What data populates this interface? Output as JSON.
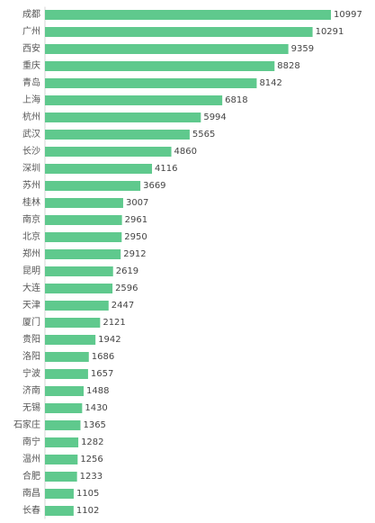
{
  "chart_data": {
    "type": "bar",
    "orientation": "horizontal",
    "title": "",
    "xlabel": "",
    "ylabel": "",
    "categories": [
      "成都",
      "广州",
      "西安",
      "重庆",
      "青岛",
      "上海",
      "杭州",
      "武汉",
      "长沙",
      "深圳",
      "苏州",
      "桂林",
      "南京",
      "北京",
      "郑州",
      "昆明",
      "大连",
      "天津",
      "厦门",
      "贵阳",
      "洛阳",
      "宁波",
      "济南",
      "无锡",
      "石家庄",
      "南宁",
      "温州",
      "合肥",
      "南昌",
      "长春"
    ],
    "values": [
      10997,
      10291,
      9359,
      8828,
      8142,
      6818,
      5994,
      5565,
      4860,
      4116,
      3669,
      3007,
      2961,
      2950,
      2912,
      2619,
      2596,
      2447,
      2121,
      1942,
      1686,
      1657,
      1488,
      1430,
      1365,
      1282,
      1256,
      1233,
      1105,
      1102
    ],
    "xlim": [
      0,
      10997
    ],
    "bar_color": "#5fc98d",
    "grid": false,
    "data_labels": true
  }
}
